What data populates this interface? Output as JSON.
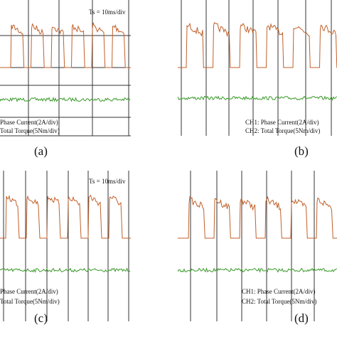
{
  "panels": [
    {
      "label": "(a)",
      "annotations": [
        "Ts = 10ms/div",
        "Phase Current(2A/div)",
        "Total Torque(5Nm/div)"
      ]
    },
    {
      "label": "(b)",
      "annotations": [
        "CH1: Phase Current(2A/div)",
        "CH2: Total Torque(5Nm/div)"
      ]
    },
    {
      "label": "(c)",
      "annotations": [
        "Ts = 10ms/div",
        "Phase Current(2A/div)",
        "Total Torque(5Nm/div)"
      ]
    },
    {
      "label": "(d)",
      "annotations": [
        "CH1: Phase Current(2A/div)",
        "CH2: Total Torque(5Nm/div)"
      ]
    }
  ]
}
